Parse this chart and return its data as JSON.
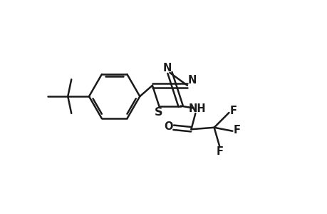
{
  "bg_color": "#ffffff",
  "line_color": "#1a1a1a",
  "line_width": 1.8,
  "font_size": 10.5,
  "figsize": [
    4.6,
    3.0
  ],
  "dpi": 100,
  "xlim": [
    0,
    9.2
  ],
  "ylim": [
    0,
    6.0
  ]
}
